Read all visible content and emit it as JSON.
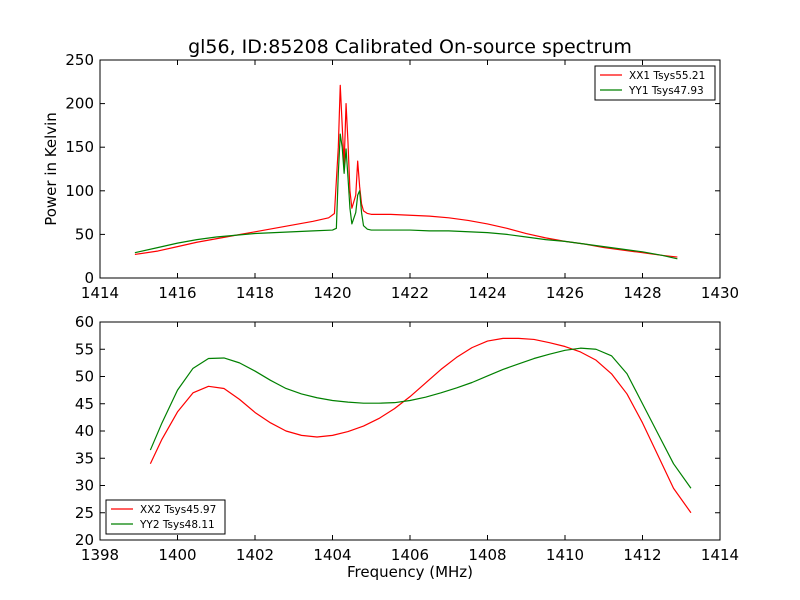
{
  "colors": {
    "xx": "#ff0000",
    "yy": "#008000",
    "axis": "#000000",
    "background": "#ffffff"
  },
  "chart_data": [
    {
      "type": "line",
      "title": "gl56, ID:85208 Calibrated On-source spectrum",
      "xlabel": "",
      "ylabel": "Power in Kelvin",
      "xlim": [
        1414,
        1430
      ],
      "ylim": [
        0,
        250
      ],
      "xticks": [
        "1414",
        "1416",
        "1418",
        "1420",
        "1422",
        "1424",
        "1426",
        "1428",
        "1430"
      ],
      "yticks": [
        "0",
        "50",
        "100",
        "150",
        "200",
        "250"
      ],
      "grid": false,
      "legend_placement": "top-right",
      "series": [
        {
          "name": "XX1 Tsys55.21",
          "color": "#ff0000",
          "x": [
            1414.9,
            1415.5,
            1416.0,
            1416.5,
            1417.0,
            1417.5,
            1418.0,
            1418.5,
            1419.0,
            1419.5,
            1419.9,
            1420.05,
            1420.15,
            1420.2,
            1420.25,
            1420.3,
            1420.35,
            1420.4,
            1420.45,
            1420.5,
            1420.6,
            1420.65,
            1420.7,
            1420.75,
            1420.8,
            1420.9,
            1421.0,
            1421.5,
            1422.0,
            1422.5,
            1423.0,
            1423.5,
            1424.0,
            1424.5,
            1425.0,
            1425.5,
            1426.0,
            1426.5,
            1427.0,
            1427.5,
            1428.0,
            1428.5,
            1428.9
          ],
          "values": [
            27,
            31,
            36,
            41,
            45,
            49,
            53,
            57,
            61,
            65,
            69,
            74,
            150,
            221,
            175,
            130,
            200,
            155,
            100,
            80,
            95,
            134,
            105,
            85,
            77,
            74,
            73,
            73,
            72,
            71,
            69,
            66,
            62,
            57,
            51,
            46,
            42,
            39,
            35,
            32,
            29,
            26,
            24
          ]
        },
        {
          "name": "YY1 Tsys47.93",
          "color": "#008000",
          "x": [
            1414.9,
            1415.5,
            1416.0,
            1416.5,
            1417.0,
            1417.5,
            1418.0,
            1418.5,
            1419.0,
            1419.5,
            1420.0,
            1420.1,
            1420.15,
            1420.2,
            1420.25,
            1420.3,
            1420.35,
            1420.4,
            1420.45,
            1420.5,
            1420.6,
            1420.65,
            1420.7,
            1420.75,
            1420.8,
            1420.9,
            1421.0,
            1421.5,
            1422.0,
            1422.5,
            1423.0,
            1423.5,
            1424.0,
            1424.5,
            1425.0,
            1425.5,
            1426.0,
            1426.5,
            1427.0,
            1427.5,
            1428.0,
            1428.5,
            1428.9
          ],
          "values": [
            29,
            35,
            40,
            44,
            47,
            49,
            51,
            52,
            53,
            54,
            55,
            57,
            120,
            165,
            150,
            120,
            148,
            115,
            80,
            62,
            75,
            95,
            100,
            75,
            60,
            56,
            55,
            55,
            55,
            54,
            54,
            53,
            52,
            50,
            47,
            44,
            42,
            39,
            36,
            33,
            30,
            26,
            22
          ]
        }
      ]
    },
    {
      "type": "line",
      "title": "",
      "xlabel": "Frequency (MHz)",
      "ylabel": "",
      "xlim": [
        1398,
        1414
      ],
      "ylim": [
        20,
        60
      ],
      "xticks": [
        "1398",
        "1400",
        "1402",
        "1404",
        "1406",
        "1408",
        "1410",
        "1412",
        "1414"
      ],
      "yticks": [
        "20",
        "25",
        "30",
        "35",
        "40",
        "45",
        "50",
        "55",
        "60"
      ],
      "grid": false,
      "legend_placement": "bottom-left",
      "series": [
        {
          "name": "XX2 Tsys45.97",
          "color": "#ff0000",
          "x": [
            1399.3,
            1399.6,
            1400.0,
            1400.4,
            1400.8,
            1401.2,
            1401.6,
            1402.0,
            1402.4,
            1402.8,
            1403.2,
            1403.6,
            1404.0,
            1404.4,
            1404.8,
            1405.2,
            1405.6,
            1406.0,
            1406.4,
            1406.8,
            1407.2,
            1407.6,
            1408.0,
            1408.4,
            1408.8,
            1409.2,
            1409.6,
            1410.0,
            1410.4,
            1410.8,
            1411.2,
            1411.6,
            1412.0,
            1412.4,
            1412.8,
            1413.25
          ],
          "values": [
            34,
            38.5,
            43.5,
            47,
            48.2,
            47.8,
            45.8,
            43.4,
            41.5,
            40,
            39.2,
            38.9,
            39.2,
            39.9,
            40.9,
            42.3,
            44.1,
            46.3,
            48.8,
            51.3,
            53.5,
            55.3,
            56.5,
            57,
            57,
            56.8,
            56.2,
            55.5,
            54.5,
            53,
            50.5,
            46.8,
            41.5,
            35.5,
            29.5,
            25
          ]
        },
        {
          "name": "YY2 Tsys48.11",
          "color": "#008000",
          "x": [
            1399.3,
            1399.6,
            1400.0,
            1400.4,
            1400.8,
            1401.2,
            1401.6,
            1402.0,
            1402.4,
            1402.8,
            1403.2,
            1403.6,
            1404.0,
            1404.4,
            1404.8,
            1405.2,
            1405.6,
            1406.0,
            1406.4,
            1406.8,
            1407.2,
            1407.6,
            1408.0,
            1408.4,
            1408.8,
            1409.2,
            1409.6,
            1410.0,
            1410.4,
            1410.8,
            1411.2,
            1411.6,
            1412.0,
            1412.4,
            1412.8,
            1413.25
          ],
          "values": [
            36.5,
            41.5,
            47.5,
            51.5,
            53.3,
            53.4,
            52.5,
            51,
            49.3,
            47.8,
            46.8,
            46.1,
            45.6,
            45.3,
            45.1,
            45.1,
            45.2,
            45.6,
            46.2,
            47,
            47.9,
            48.9,
            50.1,
            51.3,
            52.3,
            53.3,
            54.1,
            54.8,
            55.2,
            55,
            53.8,
            50.5,
            45,
            39.5,
            34,
            29.5
          ]
        }
      ]
    }
  ]
}
